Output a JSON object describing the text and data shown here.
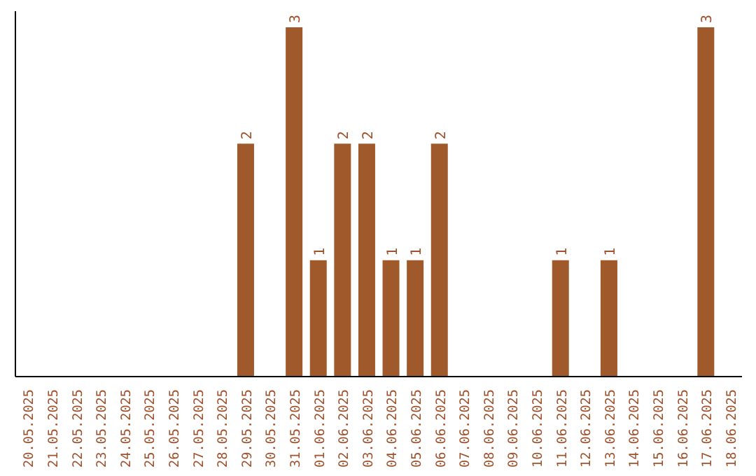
{
  "chart_data": {
    "type": "bar",
    "categories": [
      "20.05.2025",
      "21.05.2025",
      "22.05.2025",
      "23.05.2025",
      "24.05.2025",
      "25.05.2025",
      "26.05.2025",
      "27.05.2025",
      "28.05.2025",
      "29.05.2025",
      "30.05.2025",
      "31.05.2025",
      "01.06.2025",
      "02.06.2025",
      "03.06.2025",
      "04.06.2025",
      "05.06.2025",
      "06.06.2025",
      "07.06.2025",
      "08.06.2025",
      "09.06.2025",
      "10.06.2025",
      "11.06.2025",
      "12.06.2025",
      "13.06.2025",
      "14.06.2025",
      "15.06.2025",
      "16.06.2025",
      "17.06.2025",
      "18.06.2025"
    ],
    "values": [
      0,
      0,
      0,
      0,
      0,
      0,
      0,
      0,
      0,
      2,
      0,
      3,
      1,
      2,
      2,
      1,
      1,
      2,
      0,
      0,
      0,
      0,
      1,
      0,
      1,
      0,
      0,
      0,
      3,
      0
    ],
    "value_labels": [
      null,
      null,
      null,
      null,
      null,
      null,
      null,
      null,
      null,
      "2",
      null,
      "3",
      "1",
      "2",
      "2",
      "1",
      "1",
      "2",
      null,
      null,
      null,
      null,
      "1",
      null,
      "1",
      null,
      null,
      null,
      "3",
      null
    ],
    "color": "#a0592a",
    "grid": false,
    "legend": false
  }
}
